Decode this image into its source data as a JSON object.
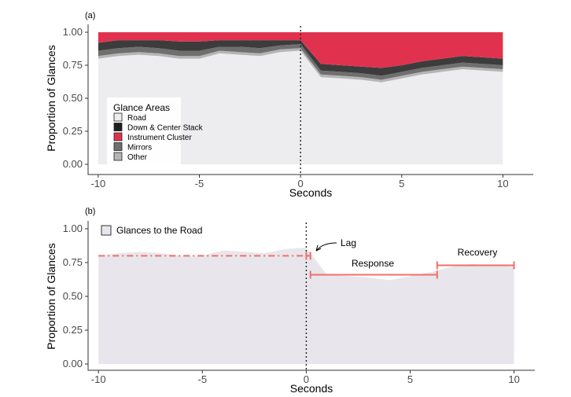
{
  "chart_data": [
    {
      "type": "area",
      "panel_label": "(a)",
      "xlabel": "Seconds",
      "ylabel": "Proportion of Glances",
      "xlim": [
        -10.5,
        11.5
      ],
      "ylim": [
        0,
        1
      ],
      "x_ticks": [
        -10,
        -5,
        0,
        5,
        10
      ],
      "x_tick_labels": [
        "-10",
        "-5",
        "0",
        "5",
        "10"
      ],
      "y_ticks": [
        0,
        0.25,
        0.5,
        0.75,
        1
      ],
      "y_tick_labels": [
        "0.00",
        "0.25",
        "0.50",
        "0.75",
        "1.00"
      ],
      "stacked": true,
      "x": [
        -10,
        -9,
        -8,
        -7,
        -6,
        -5,
        -4,
        -3,
        -2,
        -1,
        0,
        1,
        2,
        3,
        4,
        5,
        6,
        7,
        8,
        9,
        10
      ],
      "series": [
        {
          "name": "Road",
          "color": "#ededf0",
          "values": [
            0.8,
            0.82,
            0.83,
            0.82,
            0.8,
            0.8,
            0.84,
            0.83,
            0.82,
            0.85,
            0.86,
            0.66,
            0.65,
            0.64,
            0.62,
            0.65,
            0.68,
            0.7,
            0.72,
            0.71,
            0.7
          ]
        },
        {
          "name": "Other",
          "color": "#b5b5b5",
          "values": [
            0.02,
            0.02,
            0.02,
            0.02,
            0.02,
            0.02,
            0.02,
            0.02,
            0.02,
            0.02,
            0.02,
            0.02,
            0.02,
            0.02,
            0.02,
            0.02,
            0.02,
            0.02,
            0.02,
            0.02,
            0.02
          ]
        },
        {
          "name": "Mirrors",
          "color": "#6f6f6f",
          "values": [
            0.04,
            0.04,
            0.04,
            0.04,
            0.04,
            0.04,
            0.03,
            0.04,
            0.04,
            0.03,
            0.03,
            0.03,
            0.03,
            0.03,
            0.03,
            0.03,
            0.03,
            0.03,
            0.03,
            0.03,
            0.03
          ]
        },
        {
          "name": "Down & Center Stack",
          "color": "#3c3c3c",
          "values": [
            0.06,
            0.06,
            0.05,
            0.06,
            0.07,
            0.07,
            0.05,
            0.05,
            0.06,
            0.04,
            0.03,
            0.05,
            0.05,
            0.05,
            0.06,
            0.05,
            0.05,
            0.05,
            0.05,
            0.05,
            0.05
          ]
        },
        {
          "name": "Instrument Cluster",
          "color": "#e0324f",
          "values": [
            0.08,
            0.06,
            0.06,
            0.06,
            0.07,
            0.07,
            0.06,
            0.06,
            0.06,
            0.06,
            0.06,
            0.24,
            0.25,
            0.26,
            0.27,
            0.25,
            0.22,
            0.2,
            0.18,
            0.19,
            0.2
          ]
        }
      ],
      "vline_x": 0,
      "legend": {
        "title": "Glance Areas",
        "position": "bottom-left",
        "entries": [
          {
            "label": "Road",
            "color": "#ededf0"
          },
          {
            "label": "Down & Center Stack",
            "color": "#1e1e1e"
          },
          {
            "label": "Instrument Cluster",
            "color": "#e0324f"
          },
          {
            "label": "Mirrors",
            "color": "#6f6f6f"
          },
          {
            "label": "Other",
            "color": "#b5b5b5"
          }
        ]
      }
    },
    {
      "type": "area",
      "panel_label": "(b)",
      "xlabel": "Seconds",
      "ylabel": "Proportion of Glances",
      "xlim": [
        -10.5,
        11.0
      ],
      "ylim": [
        0,
        1
      ],
      "x_ticks": [
        -10,
        -5,
        0,
        5,
        10
      ],
      "x_tick_labels": [
        "-10",
        "-5",
        "0",
        "5",
        "10"
      ],
      "y_ticks": [
        0,
        0.25,
        0.5,
        0.75,
        1
      ],
      "y_tick_labels": [
        "0.00",
        "0.25",
        "0.50",
        "0.75",
        "1.00"
      ],
      "x": [
        -10,
        -9,
        -8,
        -7,
        -6,
        -5,
        -4,
        -3,
        -2,
        -1,
        0,
        1,
        2,
        3,
        4,
        5,
        6,
        7,
        8,
        9,
        10
      ],
      "series": [
        {
          "name": "Glances to the Road",
          "color": "#e8e6ec",
          "values": [
            0.8,
            0.82,
            0.83,
            0.82,
            0.8,
            0.8,
            0.84,
            0.83,
            0.82,
            0.85,
            0.86,
            0.66,
            0.65,
            0.64,
            0.62,
            0.65,
            0.68,
            0.72,
            0.74,
            0.73,
            0.72
          ]
        }
      ],
      "vline_x": 0,
      "legend": {
        "position": "top-left",
        "entries": [
          {
            "label": "Glances to the Road",
            "color": "#e8e6ec"
          }
        ]
      },
      "annotations": {
        "baseline": {
          "x_start": -10,
          "x_end": 0.2,
          "y": 0.8
        },
        "lag": {
          "label": "Lag",
          "x_start": 0,
          "x_end": 0.2,
          "y": 0.8
        },
        "response": {
          "label": "Response",
          "x_start": 0.2,
          "x_end": 6.3,
          "y": 0.66
        },
        "recovery": {
          "label": "Recovery",
          "x_start": 6.3,
          "x_end": 10,
          "y": 0.73
        },
        "color": "#f07068"
      }
    }
  ]
}
